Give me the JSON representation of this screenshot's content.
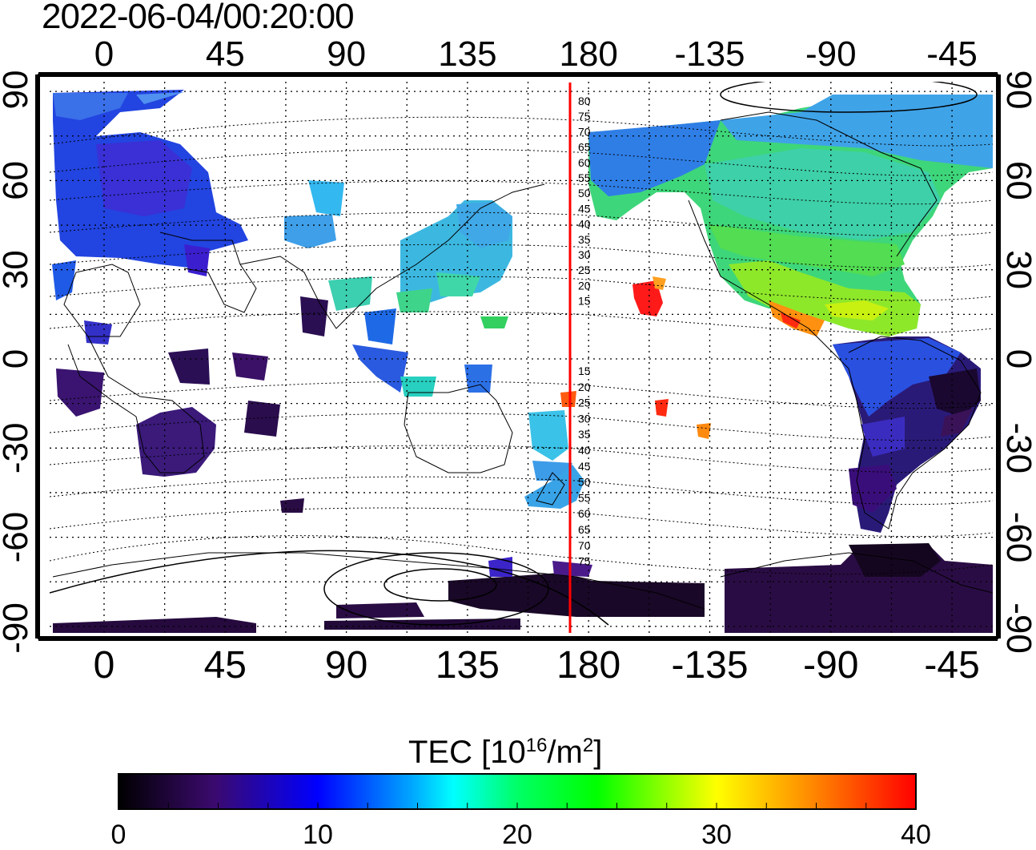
{
  "timestamp": "2022-06-04/00:20:00",
  "axes": {
    "lon_ticks": [
      "0",
      "45",
      "90",
      "135",
      "180",
      "-135",
      "-90",
      "-45"
    ],
    "lat_ticks": [
      "90",
      "60",
      "30",
      "0",
      "-30",
      "-60",
      "-90"
    ]
  },
  "overlay": {
    "meridian_lon": 175,
    "color": "#ff0000",
    "north_labels": [
      "80",
      "75",
      "70",
      "65",
      "60",
      "55",
      "50",
      "45",
      "40",
      "35",
      "30",
      "25",
      "20",
      "15"
    ],
    "south_labels": [
      "15",
      "20",
      "25",
      "30",
      "35",
      "40",
      "45",
      "50",
      "55",
      "60",
      "65",
      "70",
      "75"
    ]
  },
  "colorbar": {
    "title_main": "TEC  [10",
    "title_sup1": "16",
    "title_mid": "/m",
    "title_sup2": "2",
    "title_end": "]",
    "min": 0,
    "max": 40,
    "tick_labels": [
      "0",
      "10",
      "20",
      "30",
      "40"
    ],
    "colors": [
      "#000000",
      "#3a0a6e",
      "#0000ff",
      "#00ffff",
      "#00ff00",
      "#ffff00",
      "#ff8800",
      "#ff0000"
    ]
  }
}
